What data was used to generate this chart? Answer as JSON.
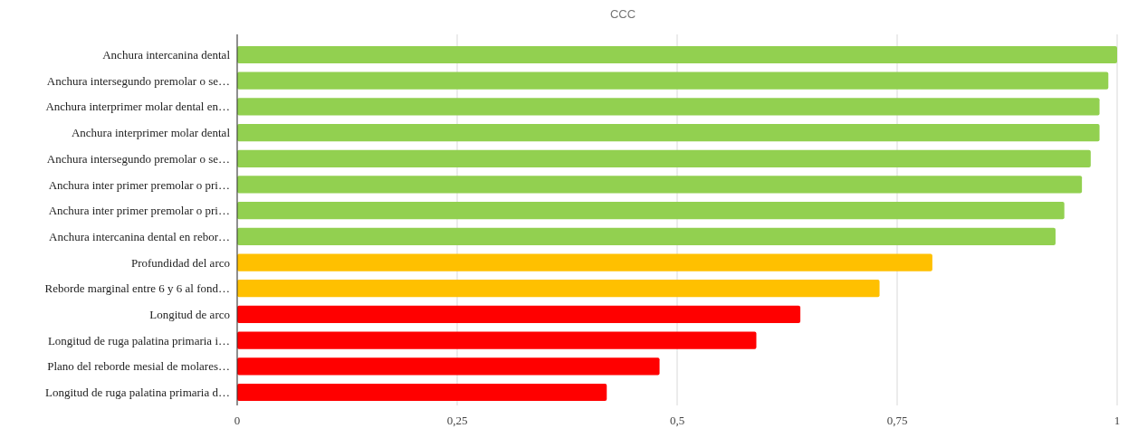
{
  "chart_data": {
    "type": "bar",
    "orientation": "horizontal",
    "title": "CCC",
    "categories": [
      "Anchura intercanina dental",
      "Anchura intersegundo premolar o se…",
      "Anchura interprimer molar dental en…",
      "Anchura interprimer molar dental",
      "Anchura intersegundo premolar o se…",
      "Anchura inter primer premolar o pri…",
      "Anchura inter primer premolar o pri…",
      "Anchura intercanina dental en rebor…",
      "Profundidad del arco",
      "Reborde marginal entre 6 y 6 al fond…",
      "Longitud de arco",
      "Longitud de ruga palatina primaria i…",
      "Plano del reborde mesial de molares…",
      "Longitud de ruga palatina primaria d…"
    ],
    "values": [
      1.0,
      0.99,
      0.98,
      0.98,
      0.97,
      0.96,
      0.94,
      0.93,
      0.79,
      0.73,
      0.64,
      0.59,
      0.48,
      0.42
    ],
    "colors": [
      "#92d050",
      "#92d050",
      "#92d050",
      "#92d050",
      "#92d050",
      "#92d050",
      "#92d050",
      "#92d050",
      "#ffc000",
      "#ffc000",
      "#ff0000",
      "#ff0000",
      "#ff0000",
      "#ff0000"
    ],
    "xlim": [
      0,
      1
    ],
    "xticks": [
      0,
      {
        "value": 0.25,
        "label": "0,25"
      },
      {
        "value": 0.5,
        "label": "0,5"
      },
      {
        "value": 0.75,
        "label": "0,75"
      },
      1
    ],
    "grid": "x"
  }
}
